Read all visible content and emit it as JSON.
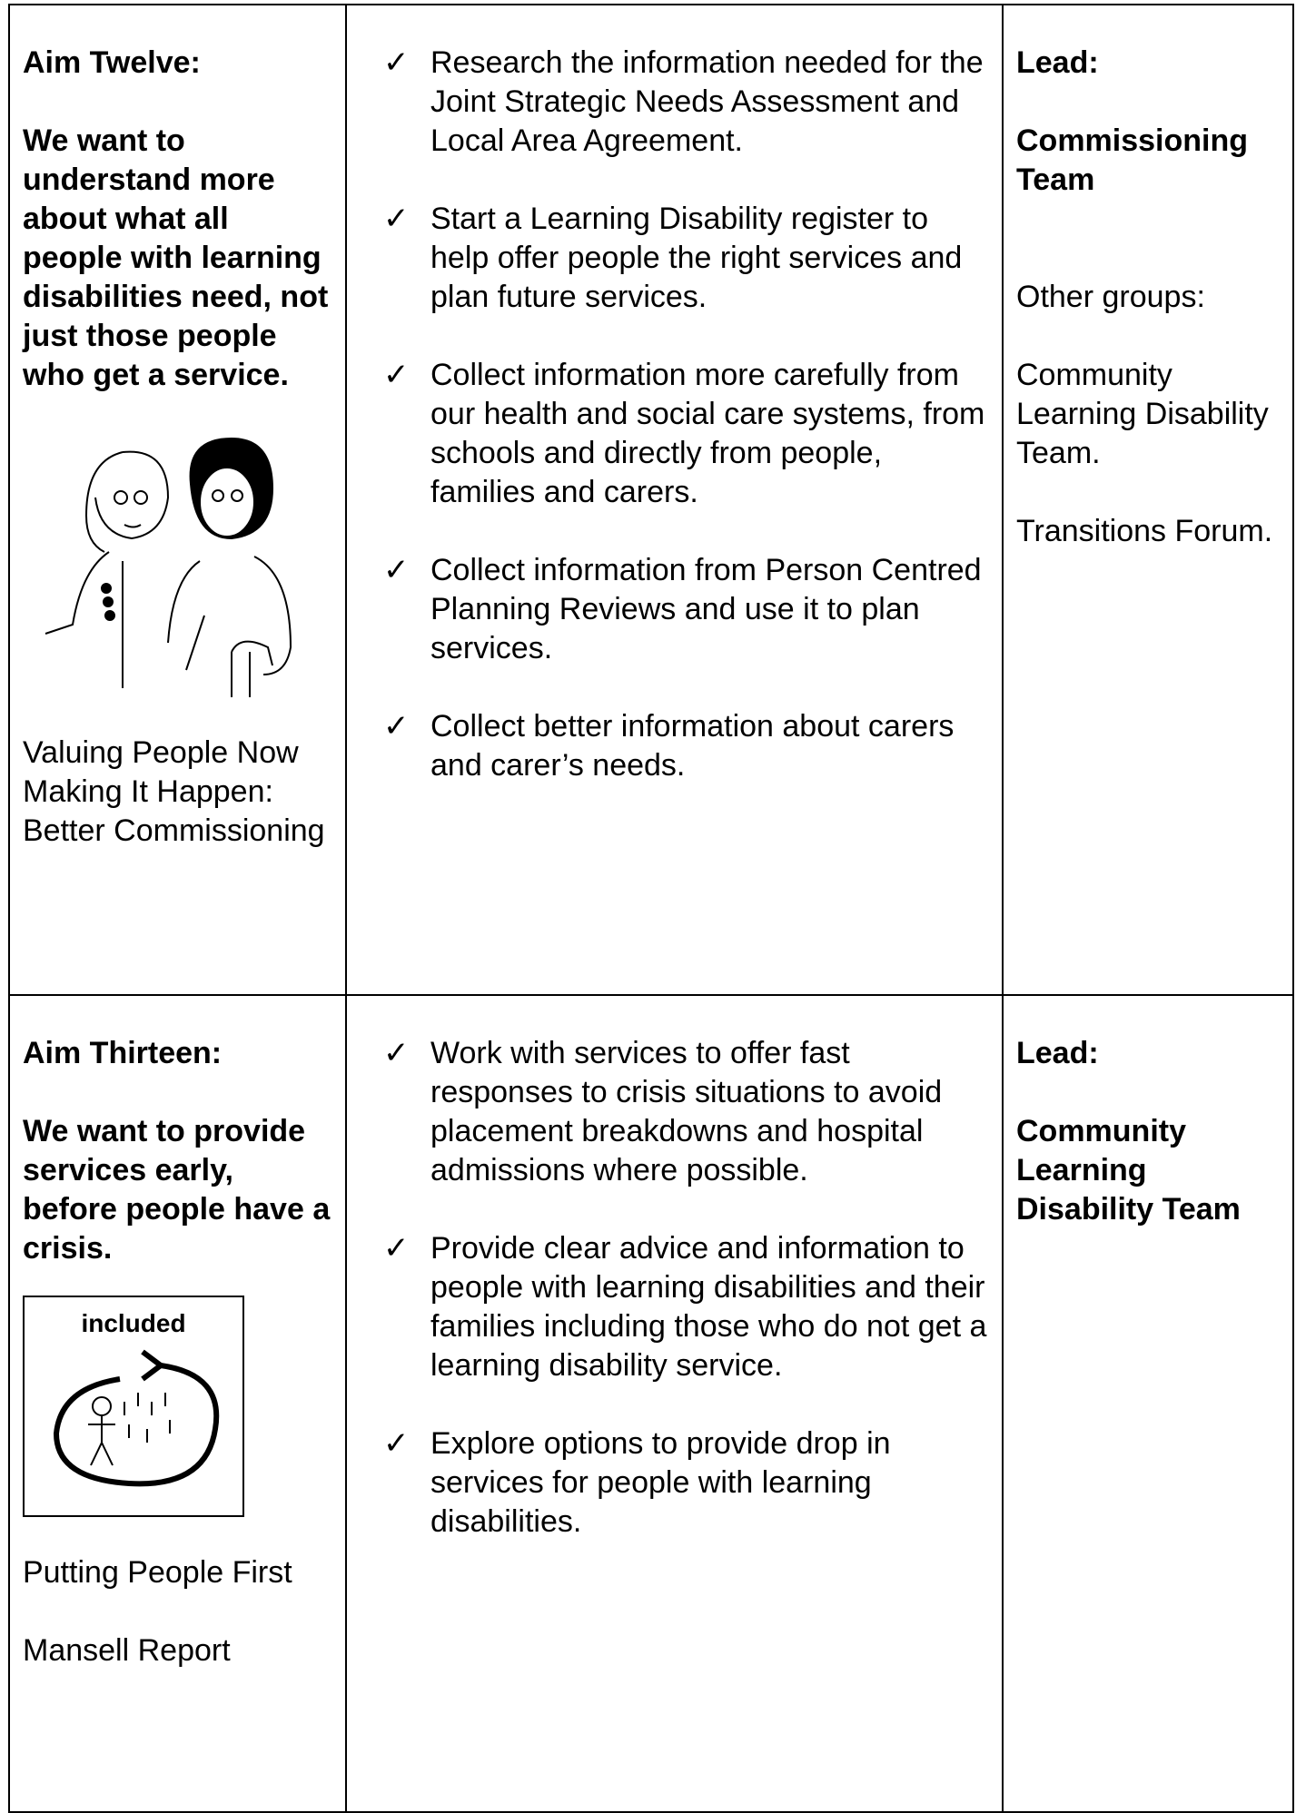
{
  "table": {
    "rows": [
      {
        "aim_title": "Aim Twelve:",
        "aim_text": "We want to understand more about what all people with learning disabilities need, not just those people who get a service.",
        "sources": [
          "Valuing People Now Making It Happen: Better Commissioning"
        ],
        "actions": [
          "Research the information needed for the Joint Strategic Needs Assessment and Local Area Agreement.",
          "Start a Learning Disability register to help offer people the right services and plan future services.",
          "Collect information more carefully from our health and social care systems, from schools and directly from people, families and carers.",
          "Collect information from Person Centred Planning Reviews and use it to plan services.",
          "Collect better information about carers and carer’s needs."
        ],
        "lead_label": "Lead:",
        "lead": "Commissioning Team",
        "other_groups_label": "Other groups:",
        "other_groups": [
          "Community Learning Disability Team.",
          "Transitions Forum."
        ]
      },
      {
        "aim_title": "Aim Thirteen:",
        "aim_text": "We want to provide services early, before people have a crisis.",
        "image_label": "included",
        "sources": [
          "Putting People First",
          "Mansell Report"
        ],
        "actions": [
          "Work with services to offer fast responses to crisis situations to avoid placement breakdowns and hospital admissions where possible.",
          "Provide clear advice and information to people with learning disabilities and their families including those who do not get a learning disability service.",
          "Explore options to provide drop in services for people with learning disabilities."
        ],
        "lead_label": "Lead:",
        "lead": "Community Learning Disability Team"
      }
    ]
  }
}
